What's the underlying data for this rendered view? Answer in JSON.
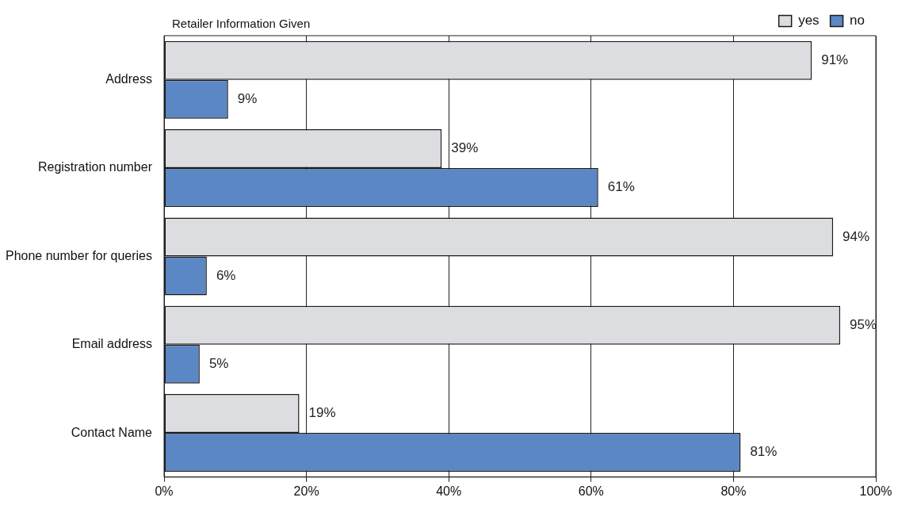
{
  "chart_data": {
    "type": "bar",
    "orientation": "horizontal",
    "title": "Retailer Information Given",
    "categories": [
      "Address",
      "Registration number",
      "Phone number for queries",
      "Email address",
      "Contact Name"
    ],
    "series": [
      {
        "name": "yes",
        "color": "#dcdde1",
        "values": [
          91,
          39,
          94,
          95,
          19
        ],
        "value_labels": [
          "91%",
          "39%",
          "94%",
          "95%",
          "19%"
        ]
      },
      {
        "name": "no",
        "color": "#5b87c5",
        "values": [
          9,
          61,
          6,
          5,
          81
        ],
        "value_labels": [
          "9%",
          "61%",
          "6%",
          "5%",
          "81%"
        ]
      }
    ],
    "xlim": [
      0,
      100
    ],
    "xticks": [
      {
        "value": 0,
        "label": "0%"
      },
      {
        "value": 20,
        "label": "20%"
      },
      {
        "value": 40,
        "label": "40%"
      },
      {
        "value": 60,
        "label": "60%"
      },
      {
        "value": 80,
        "label": "80%"
      },
      {
        "value": 100,
        "label": "100%"
      }
    ],
    "grid": "x",
    "legend": "top right"
  }
}
